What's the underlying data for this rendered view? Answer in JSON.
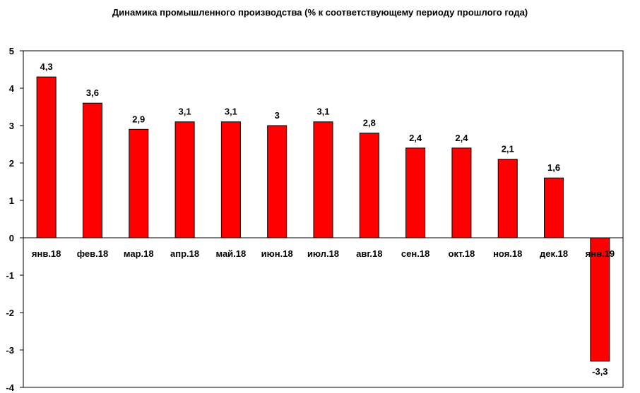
{
  "chart_data": {
    "type": "bar",
    "title": "Динамика промышленного производства (% к соответствующему периоду прошлого года)",
    "xlabel": "",
    "ylabel": "",
    "categories": [
      "янв.18",
      "фев.18",
      "мар.18",
      "апр.18",
      "май.18",
      "июн.18",
      "июл.18",
      "авг.18",
      "сен.18",
      "окт.18",
      "ноя.18",
      "дек.18",
      "янв.19"
    ],
    "values": [
      4.3,
      3.6,
      2.9,
      3.1,
      3.1,
      3.0,
      3.1,
      2.8,
      2.4,
      2.4,
      2.1,
      1.6,
      -3.3
    ],
    "data_labels": [
      "4,3",
      "3,6",
      "2,9",
      "3,1",
      "3,1",
      "3",
      "3,1",
      "2,8",
      "2,4",
      "2,4",
      "2,1",
      "1,6",
      "-3,3"
    ],
    "ylim": [
      -4,
      5
    ],
    "yticks": [
      5,
      4,
      3,
      2,
      1,
      0,
      -1,
      -2,
      -3,
      -4
    ],
    "ytick_labels": [
      "5",
      "4",
      "3",
      "2",
      "1",
      "0",
      "-1",
      "-2",
      "-3",
      "-4"
    ],
    "grid": false,
    "legend": "none",
    "bar_color": "#ff0000",
    "bar_edge_color": "#000000"
  }
}
